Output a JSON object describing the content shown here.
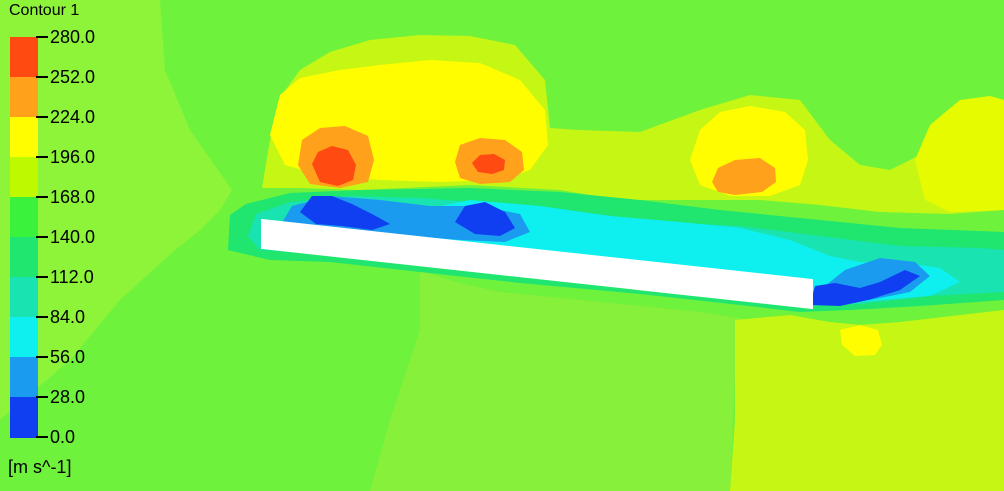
{
  "legend": {
    "title": "Contour 1",
    "units": "[m s^-1]",
    "labels": [
      "280.0",
      "252.0",
      "224.0",
      "196.0",
      "168.0",
      "140.0",
      "112.0",
      "84.0",
      "56.0",
      "28.0",
      "0.0"
    ],
    "colors": [
      "#ff4a12",
      "#ffa11b",
      "#fffd00",
      "#bef900",
      "#3af23b",
      "#20e56f",
      "#19e3b0",
      "#0ef0f0",
      "#1a9bef",
      "#0f3ff0"
    ]
  },
  "field": {
    "background": "#6ff23b",
    "body_fill": "#ffffff"
  }
}
